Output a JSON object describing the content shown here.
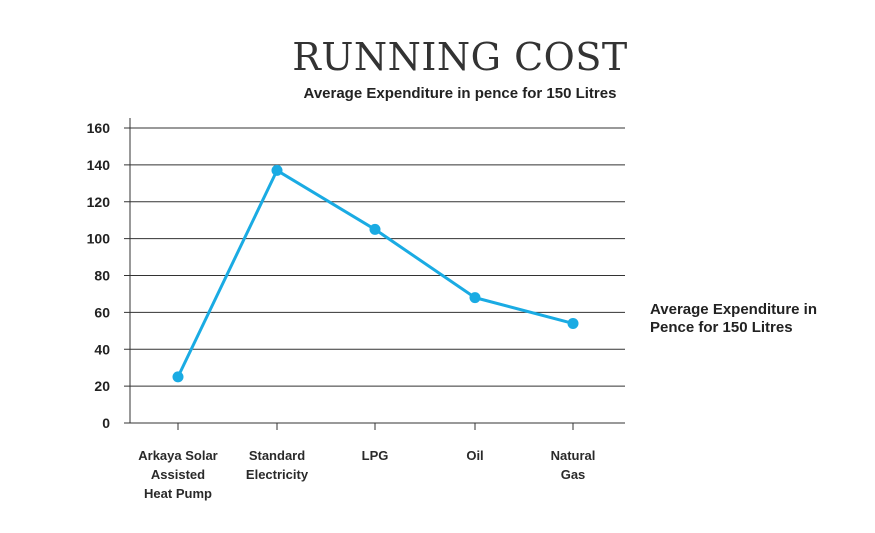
{
  "chart_data": {
    "type": "line",
    "title": "RUNNING COST",
    "subtitle": "Average Expenditure in pence for 150 Litres",
    "xlabel": "",
    "ylabel": "",
    "categories": [
      [
        "Arkaya Solar",
        "Assisted",
        "Heat Pump"
      ],
      [
        "Standard",
        "Electricity"
      ],
      [
        "LPG"
      ],
      [
        "Oil"
      ],
      [
        "Natural",
        "Gas"
      ]
    ],
    "series": [
      {
        "name": "Average Expenditure in Pence for 150 Litres",
        "values": [
          25,
          137,
          105,
          68,
          54
        ],
        "color": "#1aabe3"
      }
    ],
    "legend_lines": [
      "Average Expenditure in",
      "Pence for 150 Litres"
    ],
    "legend_position": "right",
    "ylim": [
      0,
      160
    ],
    "yticks": [
      0,
      20,
      40,
      60,
      80,
      100,
      120,
      140,
      160
    ],
    "grid": true
  }
}
